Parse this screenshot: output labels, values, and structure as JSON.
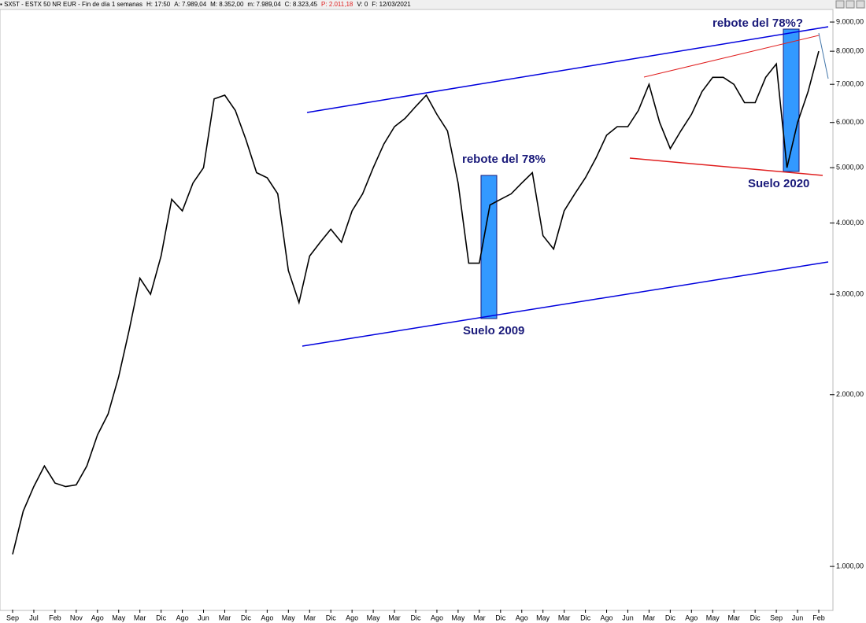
{
  "chart_data": {
    "type": "line",
    "header": [
      "SX5T - ESTX 50 NR EUR - Fin de día 1 semanas",
      "H: 17:50",
      "A: 7.989,04",
      "M: 8.352,00",
      "m: 7.989,04",
      "C: 8.323,45",
      "P: 2.011,18",
      "V: 0",
      "F: 12/03/2021"
    ],
    "header_highlight": 6,
    "log_scale": true,
    "ylim": [
      840,
      9470
    ],
    "yticks": [
      {
        "value": 1000,
        "label": "1.000,00"
      },
      {
        "value": 2000,
        "label": "2.000,00"
      },
      {
        "value": 3000,
        "label": "3.000,00"
      },
      {
        "value": 4000,
        "label": "4.000,00"
      },
      {
        "value": 5000,
        "label": "5.000,00"
      },
      {
        "value": 6000,
        "label": "6.000,00"
      },
      {
        "value": 7000,
        "label": "7.000,00"
      },
      {
        "value": 8000,
        "label": "8.000,00"
      },
      {
        "value": 9000,
        "label": "9.000,00"
      }
    ],
    "categories": [
      "Sep",
      null,
      "Jul",
      null,
      "Feb",
      null,
      "Nov",
      null,
      "Ago",
      null,
      "May",
      null,
      "Mar",
      null,
      "Dic",
      null,
      "Ago",
      null,
      "Jun",
      null,
      "Mar",
      null,
      "Dic",
      null,
      "Ago",
      null,
      "May",
      null,
      "Mar",
      null,
      "Dic",
      null,
      "Ago",
      null,
      "May",
      null,
      "Mar",
      null,
      "Dic",
      null,
      "Ago",
      null,
      "May",
      null,
      "Mar",
      null,
      "Dic",
      null,
      "Ago",
      null,
      "May",
      null,
      "Mar",
      null,
      "Dic",
      null,
      "Ago",
      null,
      "Jun",
      null,
      "Mar",
      null,
      "Dic",
      null,
      "Ago",
      null,
      "May",
      null,
      "Mar",
      null,
      "Dic",
      null,
      "Sep",
      null,
      "Jun",
      null,
      "Feb"
    ],
    "series": [
      {
        "color": "#000000",
        "values": [
          1050,
          1250,
          1380,
          1500,
          1400,
          1380,
          1390,
          1500,
          1700,
          1850,
          2150,
          2600,
          3200,
          3000,
          3500,
          4400,
          4200,
          4700,
          5000,
          6600,
          6700,
          6300,
          5600,
          4900,
          4800,
          4500,
          3300,
          2900,
          3500,
          3700,
          3900,
          3700,
          4200,
          4500,
          5000,
          5500,
          5900,
          6100,
          6400,
          6700,
          6200,
          5800,
          4700,
          3400,
          3400,
          4300,
          4400,
          4500,
          4700,
          4900,
          3800,
          3600,
          4200,
          4500,
          4800,
          5200,
          5700,
          5900,
          5900,
          6300,
          7000,
          6000,
          5400,
          5800,
          6200,
          6800,
          7200,
          7200,
          7000,
          6500,
          6500,
          7200,
          7600,
          5000,
          6000,
          6800,
          8000
        ]
      }
    ],
    "annotations": [
      "rebote del 78%",
      "Suelo 2009",
      "rebote del 78%?",
      "Suelo 2020"
    ]
  }
}
